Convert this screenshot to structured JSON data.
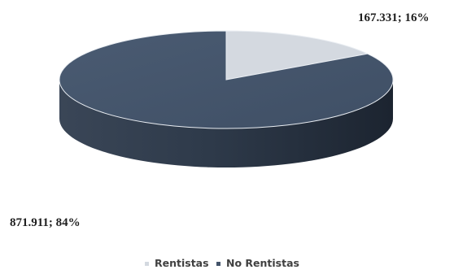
{
  "chart_data": {
    "type": "pie",
    "style": "3d",
    "categories": [
      "Rentistas",
      "No Rentistas"
    ],
    "values": [
      167331,
      871911
    ],
    "percentages": [
      16,
      84
    ],
    "data_labels": [
      "167.331; 16%",
      "871.911; 84%"
    ],
    "legend": [
      "Rentistas",
      "No Rentistas"
    ],
    "legend_position": "bottom",
    "colors": {
      "Rentistas": "#d4d9e0",
      "No Rentistas": "#44546a"
    }
  }
}
